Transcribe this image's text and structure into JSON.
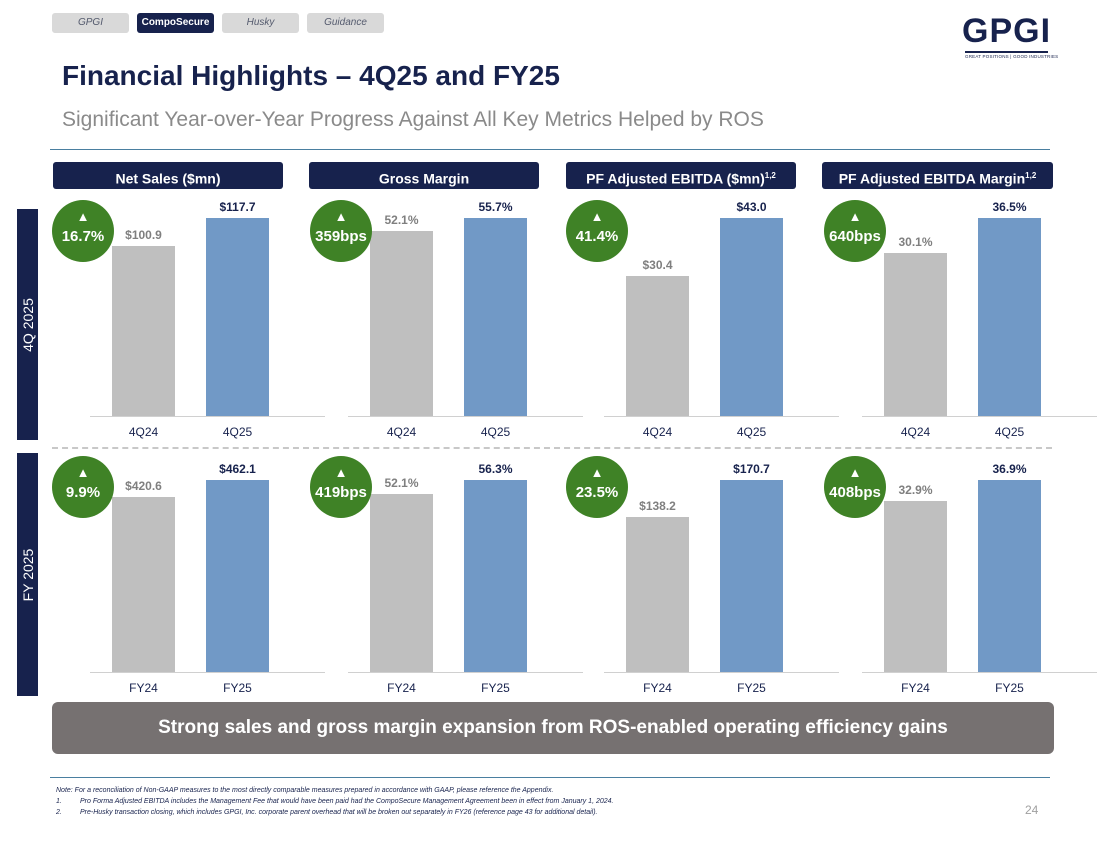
{
  "nav": {
    "tabs": [
      {
        "label": "GPGI",
        "active": false
      },
      {
        "label": "CompoSecure",
        "active": true
      },
      {
        "label": "Husky",
        "active": false
      },
      {
        "label": "Guidance",
        "active": false
      }
    ]
  },
  "logo": {
    "text": "GPGI",
    "tagline": "GREAT POSITIONS | GOOD INDUSTRIES"
  },
  "title": "Financial Highlights – 4Q25 and FY25",
  "subtitle": "Significant Year-over-Year Progress Against All Key Metrics Helped by ROS",
  "row_labels": [
    "4Q 2025",
    "FY 2025"
  ],
  "columns": [
    {
      "label": "Net Sales ($mn)",
      "sup": ""
    },
    {
      "label": "Gross Margin",
      "sup": ""
    },
    {
      "label": "PF Adjusted EBITDA ($mn)",
      "sup": "1,2"
    },
    {
      "label": "PF Adjusted EBITDA Margin",
      "sup": "1,2"
    }
  ],
  "colors": {
    "prior": "#bfbfbf",
    "current": "#7199c6",
    "badge": "#3f8226",
    "navy": "#17224d"
  },
  "chart_data": [
    {
      "type": "bar",
      "title": "Net Sales ($mn)",
      "period": "4Q 2025",
      "categories": [
        "4Q24",
        "4Q25"
      ],
      "values": [
        100.9,
        117.7
      ],
      "labels": [
        "$100.9",
        "$117.7"
      ],
      "ylim": [
        0,
        117.7
      ],
      "change": "16.7%",
      "change_arrow": "▲"
    },
    {
      "type": "bar",
      "title": "Gross Margin",
      "period": "4Q 2025",
      "categories": [
        "4Q24",
        "4Q25"
      ],
      "values": [
        52.1,
        55.7
      ],
      "labels": [
        "52.1%",
        "55.7%"
      ],
      "ylim": [
        0,
        55.7
      ],
      "change": "359bps",
      "change_arrow": "▲"
    },
    {
      "type": "bar",
      "title": "PF Adjusted EBITDA ($mn)",
      "period": "4Q 2025",
      "categories": [
        "4Q24",
        "4Q25"
      ],
      "values": [
        30.4,
        43.0
      ],
      "labels": [
        "$30.4",
        "$43.0"
      ],
      "ylim": [
        0,
        43.0
      ],
      "change": "41.4%",
      "change_arrow": "▲"
    },
    {
      "type": "bar",
      "title": "PF Adjusted EBITDA Margin",
      "period": "4Q 2025",
      "categories": [
        "4Q24",
        "4Q25"
      ],
      "values": [
        30.1,
        36.5
      ],
      "labels": [
        "30.1%",
        "36.5%"
      ],
      "ylim": [
        0,
        36.5
      ],
      "change": "640bps",
      "change_arrow": "▲"
    },
    {
      "type": "bar",
      "title": "Net Sales ($mn)",
      "period": "FY 2025",
      "categories": [
        "FY24",
        "FY25"
      ],
      "values": [
        420.6,
        462.1
      ],
      "labels": [
        "$420.6",
        "$462.1"
      ],
      "ylim": [
        0,
        462.1
      ],
      "change": "9.9%",
      "change_arrow": "▲"
    },
    {
      "type": "bar",
      "title": "Gross Margin",
      "period": "FY 2025",
      "categories": [
        "FY24",
        "FY25"
      ],
      "values": [
        52.1,
        56.3
      ],
      "labels": [
        "52.1%",
        "56.3%"
      ],
      "ylim": [
        0,
        56.3
      ],
      "change": "419bps",
      "change_arrow": "▲"
    },
    {
      "type": "bar",
      "title": "PF Adjusted EBITDA ($mn)",
      "period": "FY 2025",
      "categories": [
        "FY24",
        "FY25"
      ],
      "values": [
        138.2,
        170.7
      ],
      "labels": [
        "$138.2",
        "$170.7"
      ],
      "ylim": [
        0,
        170.7
      ],
      "change": "23.5%",
      "change_arrow": "▲"
    },
    {
      "type": "bar",
      "title": "PF Adjusted EBITDA Margin",
      "period": "FY 2025",
      "categories": [
        "FY24",
        "FY25"
      ],
      "values": [
        32.9,
        36.9
      ],
      "labels": [
        "32.9%",
        "36.9%"
      ],
      "ylim": [
        0,
        36.9
      ],
      "change": "408bps",
      "change_arrow": "▲"
    }
  ],
  "banner": "Strong sales and gross margin expansion from ROS-enabled operating efficiency gains",
  "notes": {
    "note": "Note: For a reconciliation of Non-GAAP measures to the most directly comparable measures prepared in accordance with GAAP, please reference the Appendix.",
    "items": [
      {
        "num": "1.",
        "text": "Pro Forma Adjusted EBITDA includes the Management Fee that would have been paid had the CompoSecure Management Agreement been in effect from January 1, 2024."
      },
      {
        "num": "2.",
        "text": "Pre-Husky transaction closing, which includes GPGI, Inc. corporate parent overhead that will be broken out separately in FY26 (reference page 43 for additional detail)."
      }
    ]
  },
  "page_number": "24"
}
